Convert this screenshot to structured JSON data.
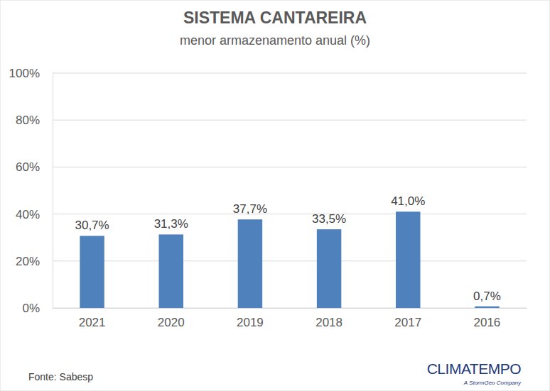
{
  "chart_data": {
    "type": "bar",
    "title": "SISTEMA CANTAREIRA",
    "subtitle": "menor armazenamento anual (%)",
    "categories": [
      "2021",
      "2020",
      "2019",
      "2018",
      "2017",
      "2016"
    ],
    "values": [
      30.7,
      31.3,
      37.7,
      33.5,
      41.0,
      0.7
    ],
    "value_labels": [
      "30,7%",
      "31,3%",
      "37,7%",
      "33,5%",
      "41,0%",
      "0,7%"
    ],
    "data_labels": true,
    "color": "#4f81bd",
    "ylim": [
      0,
      100
    ],
    "yticks": [
      {
        "value": 0,
        "label": "0%"
      },
      {
        "value": 20,
        "label": "20%"
      },
      {
        "value": 40,
        "label": "40%"
      },
      {
        "value": 60,
        "label": "60%"
      },
      {
        "value": 80,
        "label": "80%"
      },
      {
        "value": 100,
        "label": "100%"
      }
    ],
    "grid": true,
    "source": "Fonte: Sabesp",
    "logo": "CLIMATEMPO",
    "logo_subtitle": "A StormGeo Company"
  }
}
